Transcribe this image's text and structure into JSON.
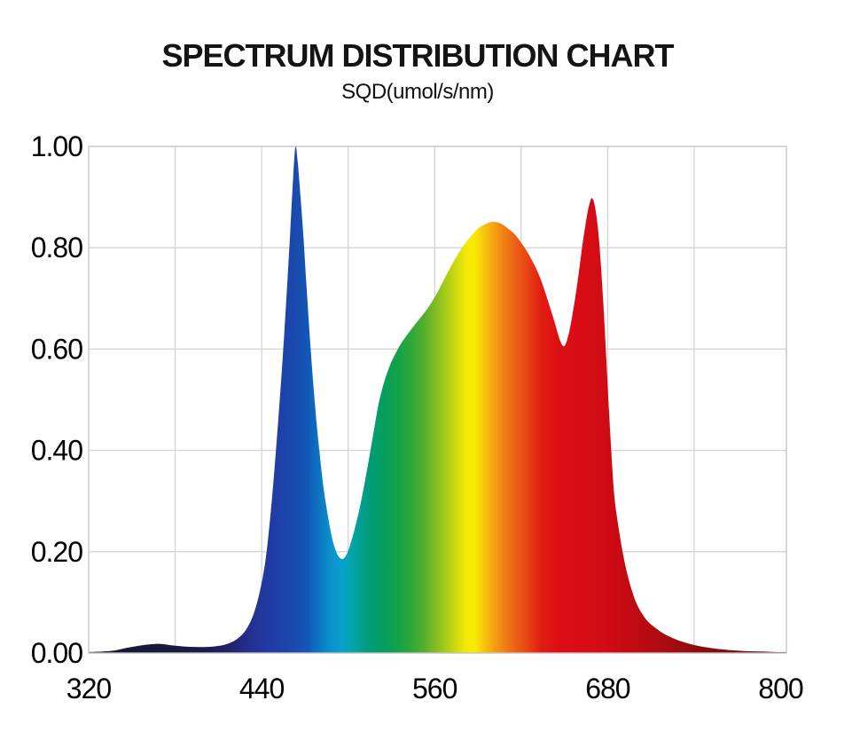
{
  "page": {
    "background": "#ffffff"
  },
  "chart_data": {
    "type": "area",
    "title": "SPECTRUM DISTRIBUTION CHART",
    "subtitle": "SQD(umol/s/nm)",
    "xlim": [
      320,
      804
    ],
    "ylim": [
      0,
      1
    ],
    "grid": true,
    "legend": "none",
    "x_ticks": [
      {
        "label": "320",
        "value": 320
      },
      {
        "label": "440",
        "value": 440
      },
      {
        "label": "560",
        "value": 560
      },
      {
        "label": "680",
        "value": 680
      },
      {
        "label": "800",
        "value": 800
      }
    ],
    "y_ticks": [
      {
        "label": "0.00",
        "value": 0.0
      },
      {
        "label": "0.20",
        "value": 0.2
      },
      {
        "label": "0.40",
        "value": 0.4
      },
      {
        "label": "0.60",
        "value": 0.6
      },
      {
        "label": "0.80",
        "value": 0.8
      },
      {
        "label": "1.00",
        "value": 1.0
      }
    ],
    "x_gridlines_nm": [
      380,
      440,
      500,
      560,
      620,
      680,
      740
    ],
    "y_gridlines": [
      0.2,
      0.4,
      0.6,
      0.8
    ],
    "grid_color": "#d4d4d4",
    "border_color": "#c6c6c6",
    "text_color": "#000000",
    "peaks": [
      {
        "nm": 463,
        "value": 1.0,
        "name": "blue-peak"
      },
      {
        "nm": 600,
        "value": 0.85,
        "name": "broad-orange-peak"
      },
      {
        "nm": 669,
        "value": 0.9,
        "name": "red-peak"
      }
    ],
    "valleys": [
      {
        "nm": 496,
        "value": 0.19,
        "name": "cyan-dip"
      },
      {
        "nm": 650,
        "value": 0.61,
        "name": "red-orange-dip"
      }
    ],
    "points": [
      [
        320,
        0.002
      ],
      [
        330,
        0.003
      ],
      [
        338,
        0.005
      ],
      [
        346,
        0.01
      ],
      [
        354,
        0.014
      ],
      [
        362,
        0.017
      ],
      [
        370,
        0.018
      ],
      [
        378,
        0.015
      ],
      [
        386,
        0.013
      ],
      [
        394,
        0.012
      ],
      [
        402,
        0.012
      ],
      [
        410,
        0.014
      ],
      [
        416,
        0.018
      ],
      [
        422,
        0.026
      ],
      [
        427,
        0.038
      ],
      [
        431,
        0.055
      ],
      [
        435,
        0.082
      ],
      [
        439,
        0.125
      ],
      [
        443,
        0.19
      ],
      [
        447,
        0.3
      ],
      [
        451,
        0.44
      ],
      [
        455,
        0.6
      ],
      [
        458,
        0.74
      ],
      [
        460,
        0.84
      ],
      [
        462,
        0.945
      ],
      [
        463.5,
        1.0
      ],
      [
        465,
        0.97
      ],
      [
        467,
        0.9
      ],
      [
        469,
        0.82
      ],
      [
        471,
        0.73
      ],
      [
        474,
        0.6
      ],
      [
        477,
        0.49
      ],
      [
        480,
        0.4
      ],
      [
        483,
        0.325
      ],
      [
        486,
        0.27
      ],
      [
        489,
        0.225
      ],
      [
        492,
        0.198
      ],
      [
        495,
        0.186
      ],
      [
        498,
        0.19
      ],
      [
        501,
        0.21
      ],
      [
        505,
        0.25
      ],
      [
        509,
        0.3
      ],
      [
        513,
        0.36
      ],
      [
        517,
        0.425
      ],
      [
        521,
        0.49
      ],
      [
        525,
        0.535
      ],
      [
        529,
        0.568
      ],
      [
        533,
        0.592
      ],
      [
        537,
        0.612
      ],
      [
        543,
        0.636
      ],
      [
        549,
        0.658
      ],
      [
        555,
        0.68
      ],
      [
        561,
        0.707
      ],
      [
        567,
        0.74
      ],
      [
        573,
        0.772
      ],
      [
        579,
        0.8
      ],
      [
        585,
        0.822
      ],
      [
        591,
        0.84
      ],
      [
        597,
        0.849
      ],
      [
        601,
        0.851
      ],
      [
        605,
        0.849
      ],
      [
        609,
        0.842
      ],
      [
        615,
        0.828
      ],
      [
        621,
        0.806
      ],
      [
        627,
        0.778
      ],
      [
        633,
        0.742
      ],
      [
        638,
        0.7
      ],
      [
        643,
        0.655
      ],
      [
        647,
        0.617
      ],
      [
        650,
        0.606
      ],
      [
        653,
        0.63
      ],
      [
        656,
        0.675
      ],
      [
        659,
        0.73
      ],
      [
        662,
        0.795
      ],
      [
        665,
        0.852
      ],
      [
        667,
        0.882
      ],
      [
        669,
        0.898
      ],
      [
        671,
        0.884
      ],
      [
        673,
        0.845
      ],
      [
        675,
        0.78
      ],
      [
        677,
        0.69
      ],
      [
        679,
        0.585
      ],
      [
        681,
        0.475
      ],
      [
        683,
        0.375
      ],
      [
        685,
        0.3
      ],
      [
        688,
        0.24
      ],
      [
        691,
        0.19
      ],
      [
        694,
        0.152
      ],
      [
        697,
        0.122
      ],
      [
        700,
        0.098
      ],
      [
        704,
        0.077
      ],
      [
        708,
        0.062
      ],
      [
        713,
        0.05
      ],
      [
        718,
        0.04
      ],
      [
        724,
        0.031
      ],
      [
        730,
        0.024
      ],
      [
        737,
        0.018
      ],
      [
        745,
        0.013
      ],
      [
        754,
        0.009
      ],
      [
        764,
        0.006
      ],
      [
        775,
        0.004
      ],
      [
        787,
        0.003
      ],
      [
        796,
        0.002
      ],
      [
        804,
        0.002
      ]
    ],
    "spectrum_gradient": [
      {
        "nm": 320,
        "color": "#18182f"
      },
      {
        "nm": 370,
        "color": "#191939"
      },
      {
        "nm": 400,
        "color": "#1b1b4d"
      },
      {
        "nm": 418,
        "color": "#20226a"
      },
      {
        "nm": 430,
        "color": "#252e8c"
      },
      {
        "nm": 442,
        "color": "#21389f"
      },
      {
        "nm": 454,
        "color": "#1d42a9"
      },
      {
        "nm": 464,
        "color": "#1a4bae"
      },
      {
        "nm": 472,
        "color": "#1158b6"
      },
      {
        "nm": 480,
        "color": "#0c76c2"
      },
      {
        "nm": 488,
        "color": "#0a92cb"
      },
      {
        "nm": 496,
        "color": "#08a2cc"
      },
      {
        "nm": 504,
        "color": "#05a2a4"
      },
      {
        "nm": 514,
        "color": "#019c7b"
      },
      {
        "nm": 524,
        "color": "#049e5d"
      },
      {
        "nm": 534,
        "color": "#13a148"
      },
      {
        "nm": 544,
        "color": "#30a837"
      },
      {
        "nm": 554,
        "color": "#5cb02b"
      },
      {
        "nm": 564,
        "color": "#94c220"
      },
      {
        "nm": 574,
        "color": "#ccd810"
      },
      {
        "nm": 582,
        "color": "#f2ea06"
      },
      {
        "nm": 588,
        "color": "#f9e903"
      },
      {
        "nm": 594,
        "color": "#f8c60d"
      },
      {
        "nm": 600,
        "color": "#f6a711"
      },
      {
        "nm": 608,
        "color": "#f08114"
      },
      {
        "nm": 616,
        "color": "#ec6116"
      },
      {
        "nm": 624,
        "color": "#e74614"
      },
      {
        "nm": 634,
        "color": "#e11d12"
      },
      {
        "nm": 648,
        "color": "#dc0d15"
      },
      {
        "nm": 668,
        "color": "#d60c15"
      },
      {
        "nm": 682,
        "color": "#cd0b13"
      },
      {
        "nm": 696,
        "color": "#c20a12"
      },
      {
        "nm": 712,
        "color": "#b20a10"
      },
      {
        "nm": 728,
        "color": "#9f0c10"
      },
      {
        "nm": 748,
        "color": "#8b0b0e"
      },
      {
        "nm": 772,
        "color": "#7a0a0c"
      },
      {
        "nm": 804,
        "color": "#6c090b"
      }
    ]
  }
}
